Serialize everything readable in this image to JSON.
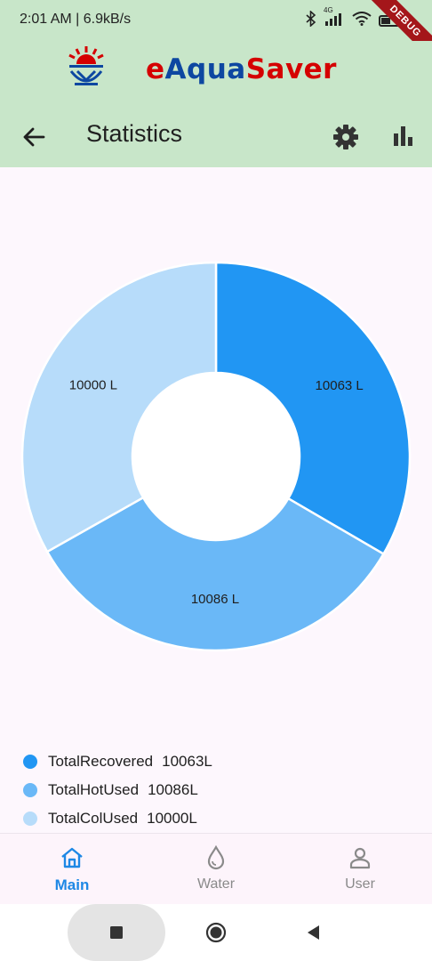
{
  "status_bar": {
    "time_speed": "2:01 AM | 6.9kB/s",
    "network": "4G",
    "debug_banner": "DEBUG"
  },
  "brand": {
    "name_e": "e",
    "name_aqua": "Aqua",
    "name_saver": "Saver"
  },
  "app_bar": {
    "title": "Statistics",
    "icons": [
      "arrow-left-icon",
      "gear-icon",
      "bar-chart-icon"
    ]
  },
  "colors": {
    "header_bg": "#c8e6c9",
    "recovered": "#2196f3",
    "hot_used": "#6ab8f7",
    "col_used": "#b7dcfa",
    "accent": "#1e88e5"
  },
  "chart_data": {
    "type": "pie",
    "categories": [
      "TotalRecovered",
      "TotalHotUsed",
      "TotalColUsed"
    ],
    "values": [
      10063,
      10086,
      10000
    ],
    "slice_labels": [
      "10063 L",
      "10086 L",
      "10000 L"
    ],
    "colors": [
      "#2196f3",
      "#6ab8f7",
      "#b7dcfa"
    ],
    "donut": true
  },
  "legend": {
    "items": [
      {
        "name": "TotalRecovered",
        "value": "10063L",
        "color": "#2196f3"
      },
      {
        "name": "TotalHotUsed",
        "value": "10086L",
        "color": "#6ab8f7"
      },
      {
        "name": "TotalColUsed",
        "value": "10000L",
        "color": "#b7dcfa"
      }
    ]
  },
  "bottom_nav": {
    "items": [
      {
        "label": "Main",
        "icon": "home-icon",
        "active": true
      },
      {
        "label": "Water",
        "icon": "water-drop-icon",
        "active": false
      },
      {
        "label": "User",
        "icon": "user-icon",
        "active": false
      }
    ]
  },
  "system_nav": {
    "icons": [
      "recents-icon",
      "home-icon",
      "back-icon"
    ]
  }
}
